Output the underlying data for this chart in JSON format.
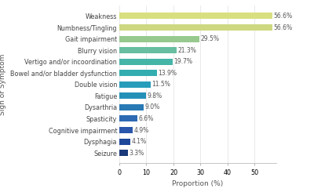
{
  "categories": [
    "Seizure",
    "Dysphagia",
    "Cognitive impairment",
    "Spasticity",
    "Dysarthria",
    "Fatigue",
    "Double vision",
    "Bowel and/or bladder dysfunction",
    "Vertigo and/or incoordination",
    "Blurry vision",
    "Gait impairment",
    "Numbness/Tingling",
    "Weakness"
  ],
  "values": [
    3.3,
    4.1,
    4.9,
    6.6,
    9.0,
    9.8,
    11.5,
    13.9,
    19.7,
    21.3,
    29.5,
    56.6,
    56.6
  ],
  "colors": [
    "#1b3a7a",
    "#1f4799",
    "#2a57ab",
    "#2d6ab3",
    "#2979b5",
    "#2490b8",
    "#289dbb",
    "#33adb0",
    "#45b5a8",
    "#68bea0",
    "#97c98e",
    "#cdd880",
    "#d8df80"
  ],
  "xlabel": "Proportion (%)",
  "ylabel": "Sign or Symptom",
  "xlim": [
    0,
    58
  ],
  "xticks": [
    0,
    10,
    20,
    30,
    40,
    50
  ],
  "bar_height": 0.55,
  "label_fontsize": 5.8,
  "axis_label_fontsize": 6.5,
  "tick_fontsize": 5.8,
  "value_fontsize": 5.5
}
